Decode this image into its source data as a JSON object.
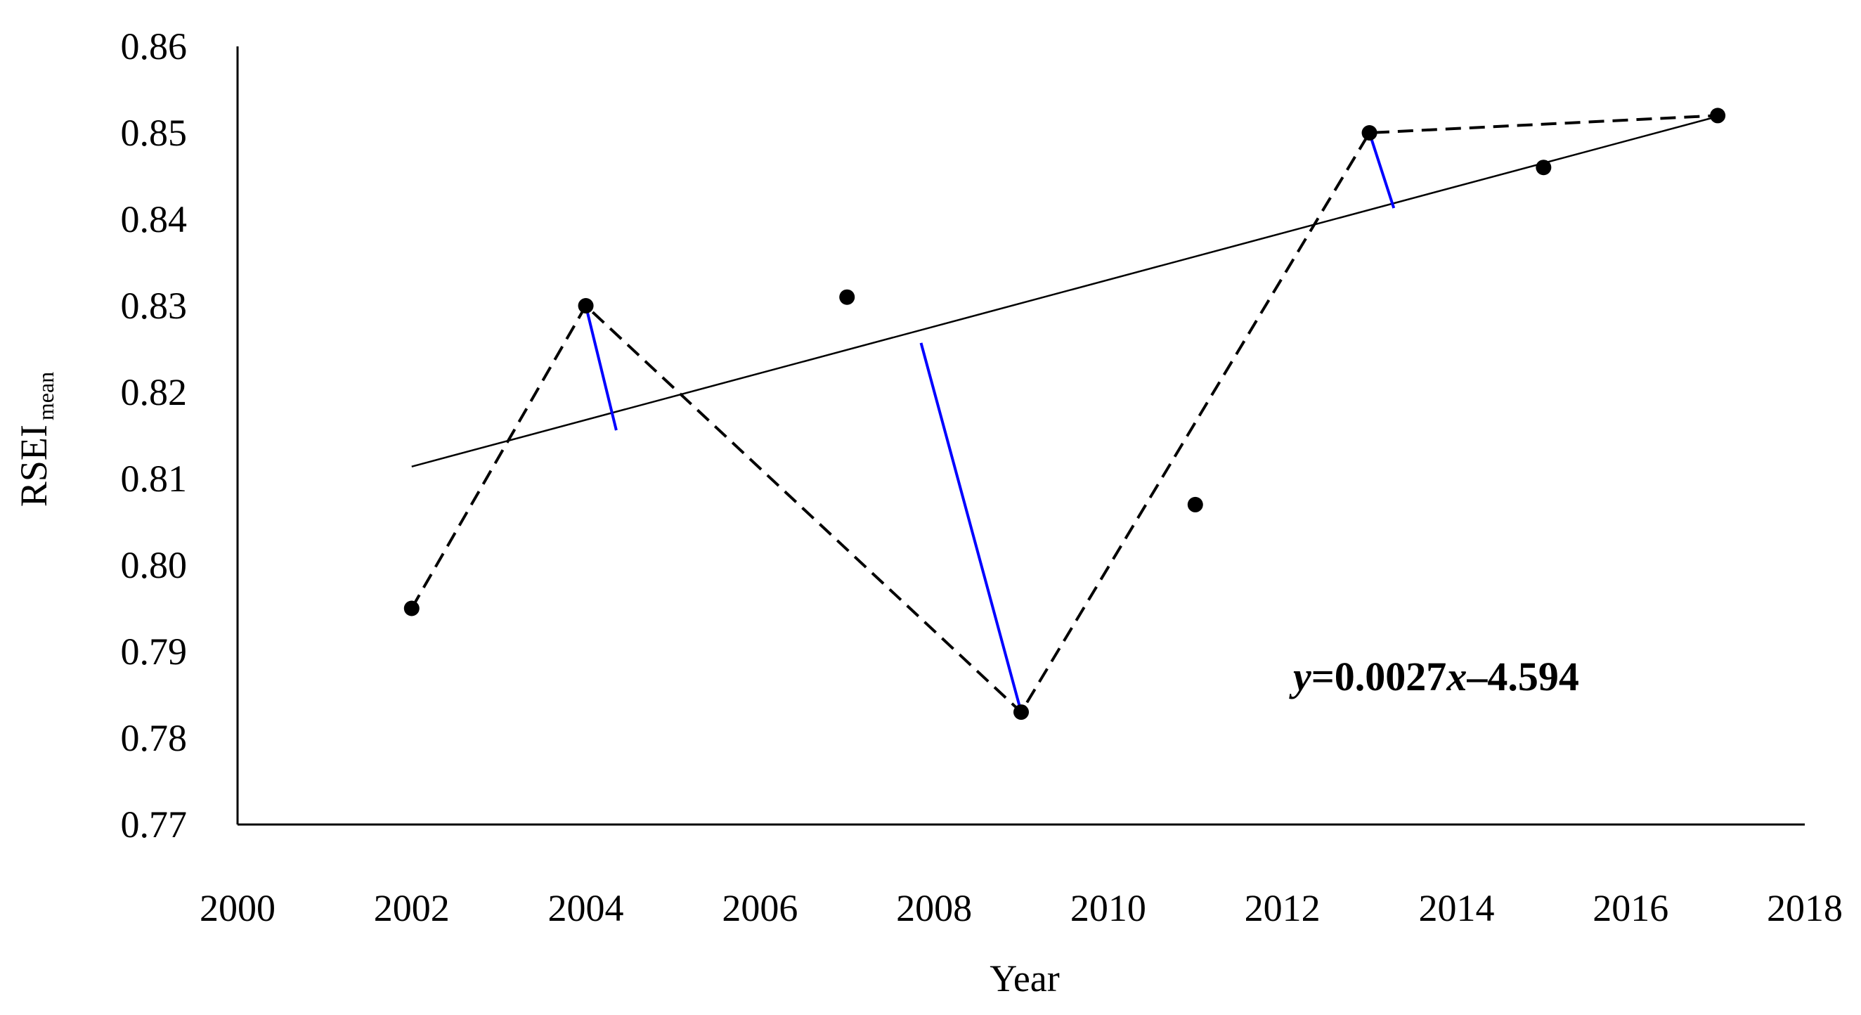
{
  "chart_data": {
    "type": "scatter",
    "xlabel": "Year",
    "ylabel": "RSEI",
    "ylabel_subscript": "mean",
    "xlim": [
      2000,
      2018
    ],
    "ylim": [
      0.77,
      0.86
    ],
    "x_ticks": [
      "2000",
      "2002",
      "2004",
      "2006",
      "2008",
      "2010",
      "2012",
      "2014",
      "2016",
      "2018"
    ],
    "y_ticks": [
      "0.77",
      "0.78",
      "0.79",
      "0.80",
      "0.81",
      "0.82",
      "0.83",
      "0.84",
      "0.85",
      "0.86"
    ],
    "grid": false,
    "points": [
      {
        "x": 2002,
        "y": 0.795
      },
      {
        "x": 2004,
        "y": 0.83
      },
      {
        "x": 2007,
        "y": 0.831
      },
      {
        "x": 2009,
        "y": 0.783
      },
      {
        "x": 2011,
        "y": 0.807
      },
      {
        "x": 2013,
        "y": 0.85
      },
      {
        "x": 2015,
        "y": 0.846
      },
      {
        "x": 2017,
        "y": 0.852
      }
    ],
    "dashed_path": [
      {
        "x": 2002,
        "y": 0.795
      },
      {
        "x": 2004,
        "y": 0.83
      },
      {
        "x": 2009,
        "y": 0.783
      },
      {
        "x": 2013,
        "y": 0.85
      },
      {
        "x": 2017,
        "y": 0.852
      }
    ],
    "trendline": {
      "x_start": 2002,
      "x_end": 2017,
      "slope": 0.0027,
      "intercept": -4.594
    },
    "perpendiculars": [
      {
        "from": {
          "x": 2004,
          "y": 0.83
        },
        "to": {
          "x": 2004.35,
          "y": 0.8156
        }
      },
      {
        "from": {
          "x": 2009,
          "y": 0.783
        },
        "to": {
          "x": 2007.85,
          "y": 0.8257
        }
      },
      {
        "from": {
          "x": 2013,
          "y": 0.85
        },
        "to": {
          "x": 2013.28,
          "y": 0.8413
        }
      }
    ],
    "annotation": {
      "prefix": "y",
      "middle": "=0.0027",
      "var": "x",
      "suffix": "–4.594"
    },
    "colors": {
      "axis": "#000000",
      "points": "#000000",
      "dashed": "#000000",
      "trend": "#000000",
      "perpendicular": "#0000ff"
    }
  }
}
